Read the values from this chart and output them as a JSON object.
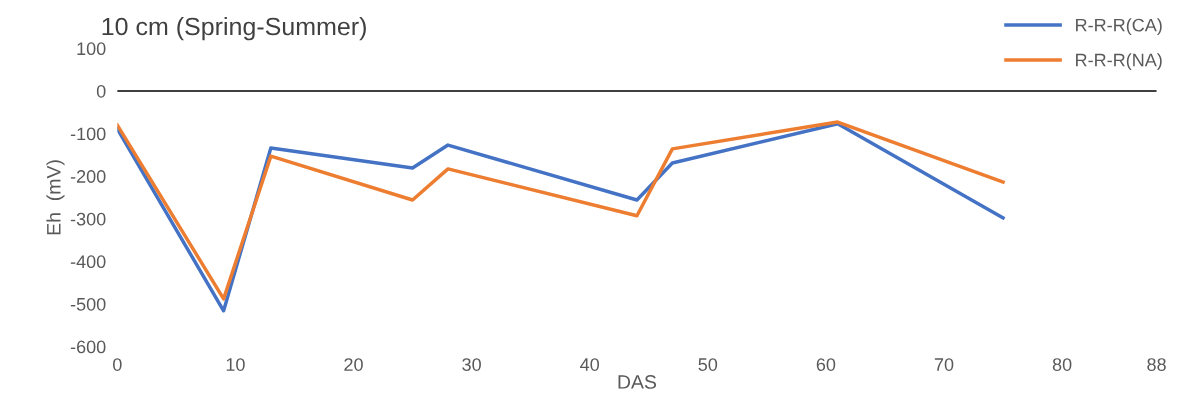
{
  "chart_data": {
    "type": "line",
    "title": "10 cm (Spring-Summer)",
    "xlabel": "DAS",
    "ylabel": "Eh  (mV)",
    "x": [
      0,
      9,
      13,
      25,
      28,
      44,
      47,
      61,
      75
    ],
    "series": [
      {
        "name": "R-R-R(CA)",
        "color": "#4472c4",
        "values": [
          -89,
          -516,
          -134,
          -181,
          -127,
          -256,
          -169,
          -77,
          -298
        ]
      },
      {
        "name": "R-R-R(NA)",
        "color": "#ed7d31",
        "values": [
          -80,
          -488,
          -153,
          -256,
          -183,
          -293,
          -136,
          -73,
          -214
        ]
      }
    ],
    "xlim": [
      0,
      88
    ],
    "xticks": [
      0,
      10,
      20,
      30,
      40,
      50,
      60,
      70,
      80,
      88
    ],
    "ylim": [
      -600,
      100
    ],
    "yticks": [
      -600,
      -500,
      -400,
      -300,
      -200,
      -100,
      0,
      100
    ],
    "ref_lines": [
      {
        "axis": "y",
        "value": 0,
        "color": "#000000"
      }
    ],
    "grid": false,
    "legend": "right",
    "marker": "none",
    "line_style": "solid"
  }
}
